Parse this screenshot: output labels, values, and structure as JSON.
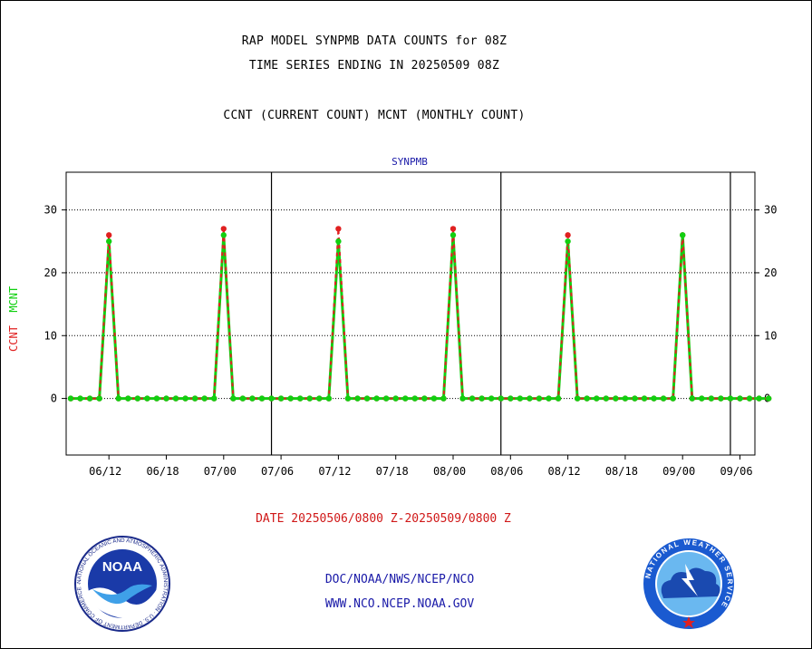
{
  "header": {
    "title": "RAP MODEL SYNPMB DATA COUNTS for 08Z",
    "subtitle": "TIME SERIES ENDING IN 20250509 08Z",
    "legend_text": "CCNT (CURRENT COUNT) MCNT (MONTHLY COUNT)"
  },
  "chart_data": {
    "type": "line",
    "title": "SYNPMB",
    "ylabel_ccnt": "CCNT",
    "ylabel_mcnt": "MCNT",
    "ylim": [
      -9,
      36
    ],
    "yticks": [
      0,
      10,
      20,
      30
    ],
    "xticks": [
      "06/12",
      "06/18",
      "07/00",
      "07/06",
      "07/12",
      "07/18",
      "08/00",
      "08/06",
      "08/12",
      "08/18",
      "09/00",
      "09/06"
    ],
    "grid": true,
    "x_hours": [
      0,
      1,
      2,
      3,
      4,
      5,
      6,
      7,
      8,
      9,
      10,
      11,
      12,
      13,
      14,
      15,
      16,
      17,
      18,
      19,
      20,
      21,
      22,
      23,
      24,
      25,
      26,
      27,
      28,
      29,
      30,
      31,
      32,
      33,
      34,
      35,
      36,
      37,
      38,
      39,
      40,
      41,
      42,
      43,
      44,
      45,
      46,
      47,
      48,
      49,
      50,
      51,
      52,
      53,
      54,
      55,
      56,
      57,
      58,
      59,
      60,
      61,
      62,
      63,
      64,
      65,
      66,
      67,
      68,
      69,
      70,
      71,
      72,
      73
    ],
    "series": [
      {
        "name": "CCNT",
        "color": "#e02020",
        "values": [
          0,
          0,
          0,
          0,
          26,
          0,
          0,
          0,
          0,
          0,
          0,
          0,
          0,
          0,
          0,
          0,
          27,
          0,
          0,
          0,
          0,
          0,
          0,
          0,
          0,
          0,
          0,
          0,
          27,
          0,
          0,
          0,
          0,
          0,
          0,
          0,
          0,
          0,
          0,
          0,
          27,
          0,
          0,
          0,
          0,
          0,
          0,
          0,
          0,
          0,
          0,
          0,
          26,
          0,
          0,
          0,
          0,
          0,
          0,
          0,
          0,
          0,
          0,
          0,
          26,
          0,
          0,
          0,
          0,
          0,
          0,
          0,
          0,
          0
        ]
      },
      {
        "name": "MCNT",
        "color": "#10d010",
        "values": [
          0,
          0,
          0,
          0,
          25,
          0,
          0,
          0,
          0,
          0,
          0,
          0,
          0,
          0,
          0,
          0,
          26,
          0,
          0,
          0,
          0,
          0,
          0,
          0,
          0,
          0,
          0,
          0,
          25,
          0,
          0,
          0,
          0,
          0,
          0,
          0,
          0,
          0,
          0,
          0,
          26,
          0,
          0,
          0,
          0,
          0,
          0,
          0,
          0,
          0,
          0,
          0,
          25,
          0,
          0,
          0,
          0,
          0,
          0,
          0,
          0,
          0,
          0,
          0,
          26,
          0,
          0,
          0,
          0,
          0,
          0,
          0,
          0,
          0
        ]
      }
    ]
  },
  "date_range": "DATE 20250506/0800 Z-20250509/0800 Z",
  "footer": {
    "org": "DOC/NOAA/NWS/NCEP/NCO",
    "url": "WWW.NCO.NCEP.NOAA.GOV"
  },
  "logos": {
    "noaa_text": "NOAA",
    "noaa_ring": "NATIONAL OCEANIC AND ATMOSPHERIC ADMINISTRATION · U.S. DEPARTMENT OF COMMERCE ·",
    "nws_ring": "NATIONAL WEATHER SERVICE"
  }
}
